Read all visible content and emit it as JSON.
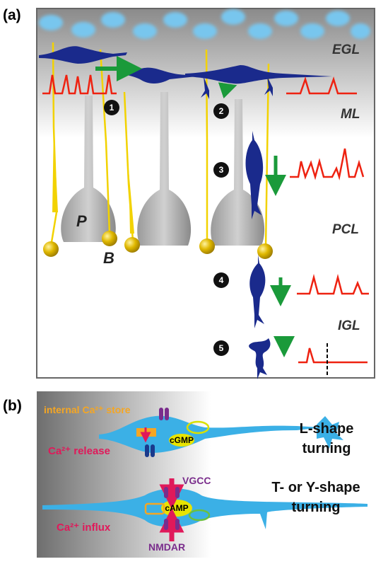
{
  "panel_a": {
    "label": "(a)",
    "layers": [
      "EGL",
      "ML",
      "PCL",
      "IGL"
    ],
    "cells": [
      "P",
      "B"
    ],
    "steps": [
      "1",
      "2",
      "3",
      "4",
      "5"
    ]
  },
  "panel_b": {
    "label": "(b)",
    "top": {
      "store": "internal Ca²⁺ store",
      "release": "Ca²⁺ release",
      "messenger": "cGMP",
      "turning": [
        "L-shape",
        "turning"
      ]
    },
    "bottom": {
      "channel_top": "VGCC",
      "messenger": "cAMP",
      "influx": "Ca²⁺ influx",
      "channel_bottom": "NMDAR",
      "turning": [
        "T- or Y-shape",
        "turning"
      ]
    }
  }
}
